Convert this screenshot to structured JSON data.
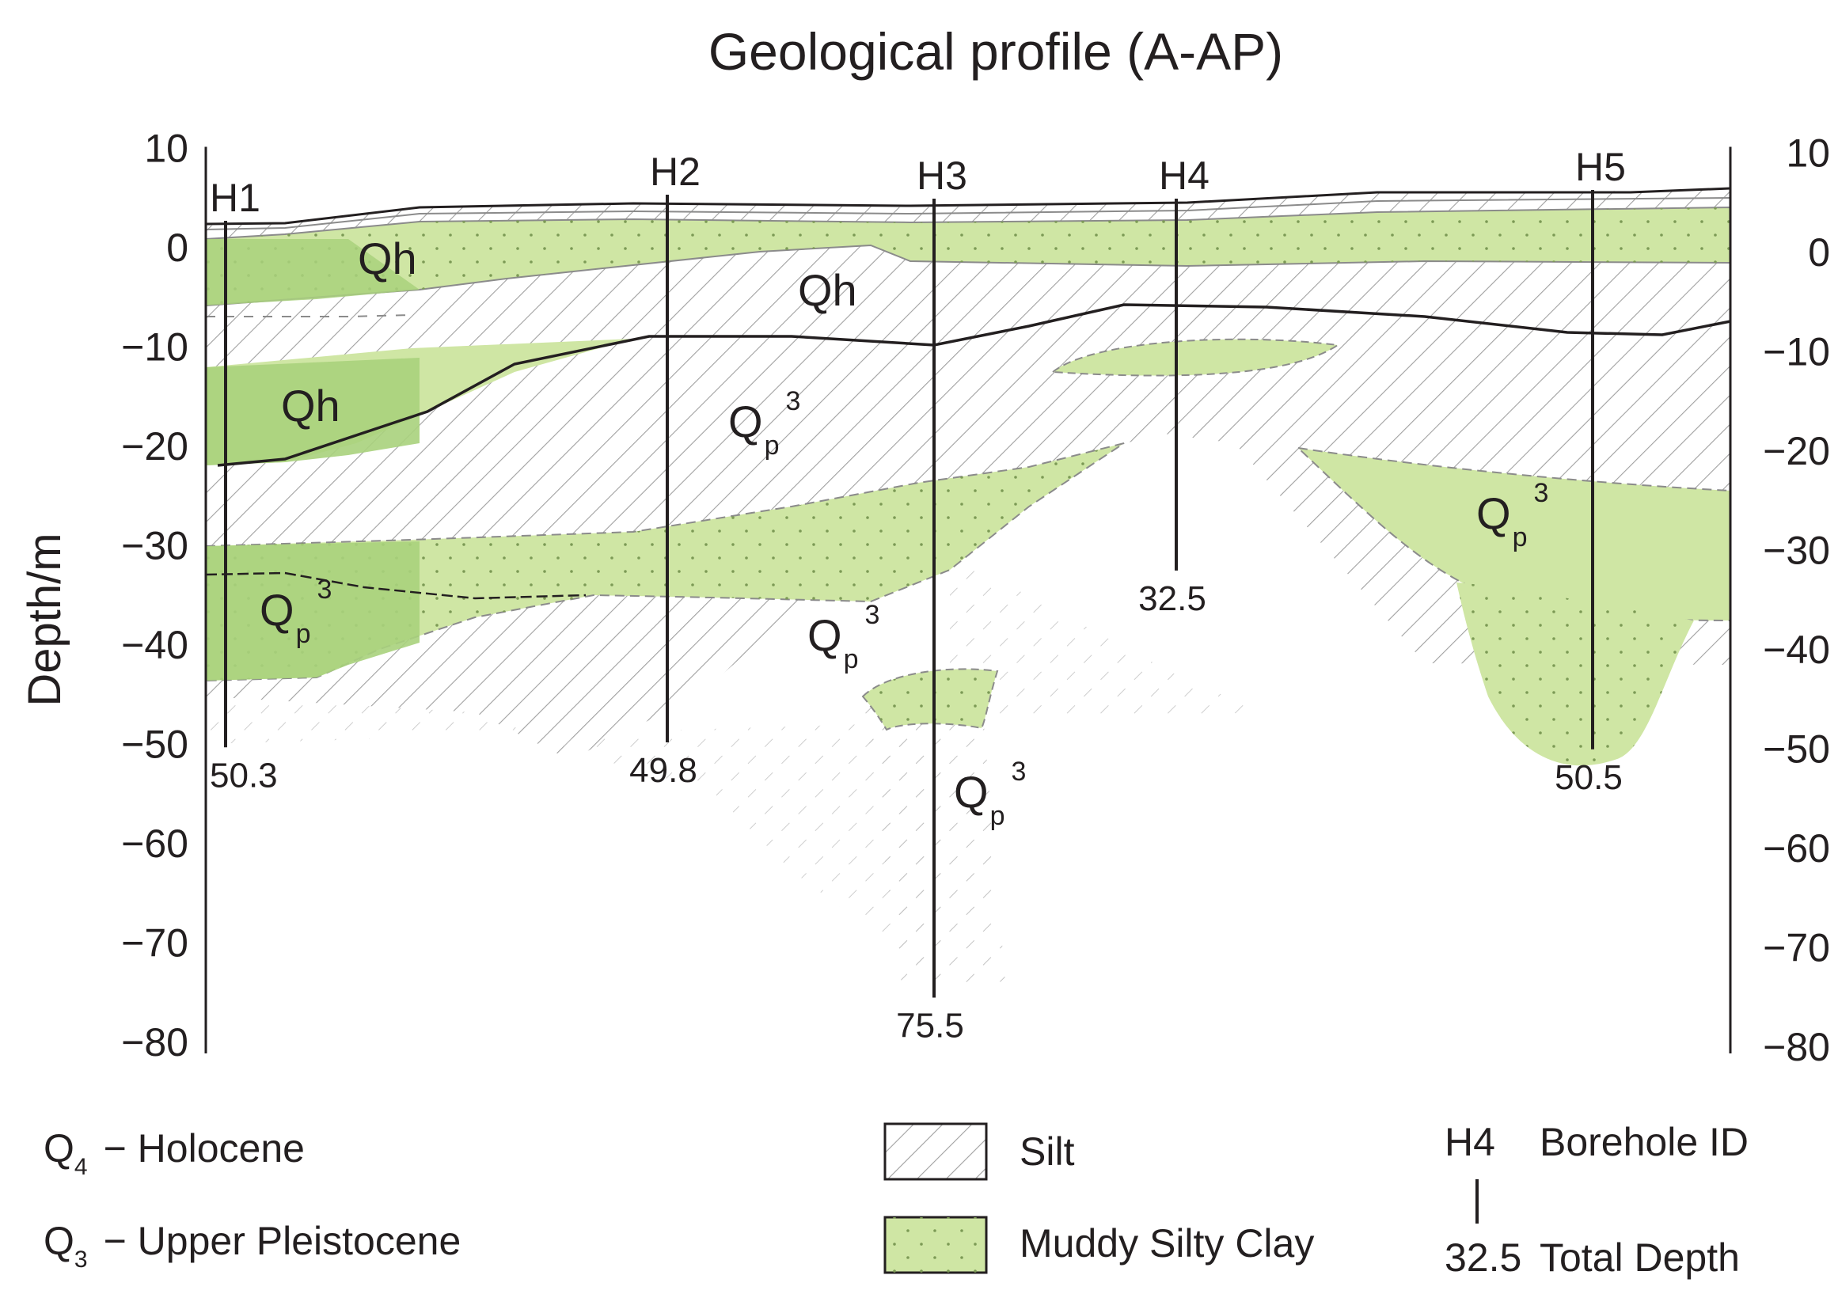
{
  "title": "Geological profile (A-AP)",
  "axis": {
    "y_label": "Depth/m",
    "ticks": [
      10,
      0,
      -10,
      -20,
      -30,
      -40,
      -50,
      -60,
      -70,
      -80
    ],
    "tick_labels": [
      "10",
      "0",
      "−10",
      "−20",
      "−30",
      "−40",
      "−50",
      "−60",
      "−70",
      "−80"
    ],
    "ylim": [
      -80,
      10
    ]
  },
  "boreholes": [
    {
      "id": "H1",
      "total_depth": "50.3",
      "bottom": -50.3
    },
    {
      "id": "H2",
      "total_depth": "49.8",
      "bottom": -49.8
    },
    {
      "id": "H3",
      "total_depth": "75.5",
      "bottom": -75.5
    },
    {
      "id": "H4",
      "total_depth": "32.5",
      "bottom": -32.5
    },
    {
      "id": "H5",
      "total_depth": "50.5",
      "bottom": -50.5
    }
  ],
  "unit_labels": [
    {
      "base": "Qh",
      "sub": "",
      "sup": ""
    },
    {
      "base": "Qh",
      "sub": "",
      "sup": ""
    },
    {
      "base": "Qh",
      "sub": "",
      "sup": ""
    },
    {
      "base": "Q",
      "sub": "p",
      "sup": "3"
    },
    {
      "base": "Q",
      "sub": "p",
      "sup": "3"
    },
    {
      "base": "Q",
      "sub": "p",
      "sup": "3"
    },
    {
      "base": "Q",
      "sub": "p",
      "sup": "3"
    },
    {
      "base": "Q",
      "sub": "p",
      "sup": "3"
    }
  ],
  "legend": {
    "ages": [
      {
        "symbol": "Q",
        "sub": "4",
        "text": "− Holocene"
      },
      {
        "symbol": "Q",
        "sub": "3",
        "text": "− Upper Pleistocene"
      }
    ],
    "lithology": [
      {
        "label": "Silt",
        "pattern": "silt-hatch"
      },
      {
        "label": "Muddy Silty Clay",
        "pattern": "clay-dots"
      }
    ],
    "borehole_key": {
      "id": "H4",
      "id_label": "Borehole ID",
      "depth": "32.5",
      "depth_label": "Total Depth"
    }
  },
  "colors": {
    "clay": "#cfe6a4",
    "clay_dark": "#a9d17c",
    "hatch": "#9a9a9a",
    "line": "#231f20"
  }
}
